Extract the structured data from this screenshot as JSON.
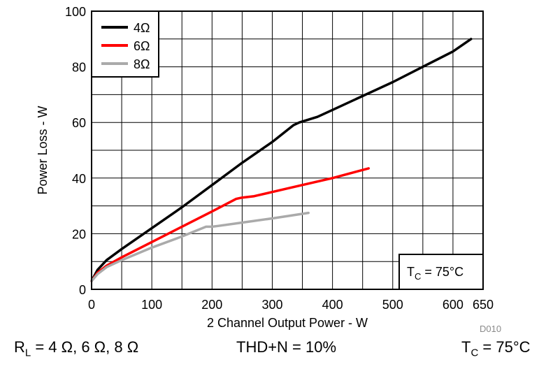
{
  "chart_data": {
    "type": "line",
    "title": "",
    "xlabel": "2 Channel Output Power - W",
    "ylabel": "Power Loss - W",
    "xlim": [
      0,
      650
    ],
    "ylim": [
      0,
      100
    ],
    "x_ticks": [
      0,
      50,
      100,
      150,
      200,
      250,
      300,
      350,
      400,
      450,
      500,
      550,
      600,
      650
    ],
    "x_tick_labels": [
      "0",
      "100",
      "200",
      "300",
      "400",
      "500",
      "600",
      "650"
    ],
    "x_tick_label_values": [
      0,
      100,
      200,
      300,
      400,
      500,
      600,
      650
    ],
    "y_ticks": [
      0,
      10,
      20,
      30,
      40,
      50,
      60,
      70,
      80,
      90,
      100
    ],
    "y_tick_labels": [
      "0",
      "20",
      "40",
      "60",
      "80",
      "100"
    ],
    "y_tick_label_values": [
      0,
      20,
      40,
      60,
      80,
      100
    ],
    "grid": true,
    "legend_position": "top-left",
    "annotation": {
      "prefix": "T",
      "sub": "C",
      "suffix": " = 75°C"
    },
    "series": [
      {
        "name": "4Ω",
        "color": "#000000",
        "points": [
          [
            0,
            3
          ],
          [
            10,
            7
          ],
          [
            25,
            10.5
          ],
          [
            50,
            14.5
          ],
          [
            100,
            22
          ],
          [
            150,
            29.5
          ],
          [
            200,
            37.5
          ],
          [
            250,
            45.5
          ],
          [
            300,
            53
          ],
          [
            335,
            59
          ],
          [
            345,
            60
          ],
          [
            375,
            62
          ],
          [
            400,
            64.5
          ],
          [
            450,
            69.5
          ],
          [
            500,
            74.5
          ],
          [
            550,
            80
          ],
          [
            600,
            85.5
          ],
          [
            630,
            90
          ]
        ]
      },
      {
        "name": "6Ω",
        "color": "#ff0000",
        "points": [
          [
            0,
            3
          ],
          [
            10,
            6
          ],
          [
            25,
            8.5
          ],
          [
            50,
            11.5
          ],
          [
            100,
            17
          ],
          [
            150,
            22.5
          ],
          [
            200,
            28
          ],
          [
            240,
            32.5
          ],
          [
            250,
            33
          ],
          [
            270,
            33.5
          ],
          [
            300,
            35
          ],
          [
            330,
            36.5
          ],
          [
            400,
            40
          ],
          [
            460,
            43.5
          ]
        ]
      },
      {
        "name": "8Ω",
        "color": "#aaaaaa",
        "points": [
          [
            0,
            3
          ],
          [
            10,
            5.5
          ],
          [
            25,
            8
          ],
          [
            50,
            10.5
          ],
          [
            100,
            15
          ],
          [
            150,
            19
          ],
          [
            190,
            22.5
          ],
          [
            200,
            22.5
          ],
          [
            210,
            22.8
          ],
          [
            250,
            24
          ],
          [
            300,
            25.5
          ],
          [
            360,
            27.5
          ]
        ]
      }
    ]
  },
  "captions": {
    "rl": {
      "prefix": "R",
      "sub": "L",
      "suffix": " = 4 Ω, 6 Ω, 8 Ω"
    },
    "thd": "THD+N = 10%",
    "tc": {
      "prefix": "T",
      "sub": "C",
      "suffix": " = 75°C"
    }
  },
  "doc_id": "D010"
}
